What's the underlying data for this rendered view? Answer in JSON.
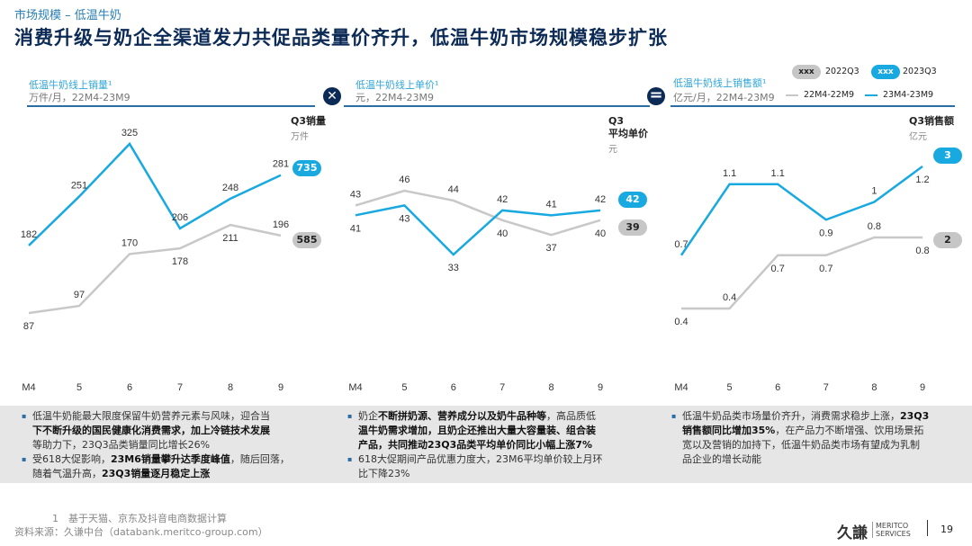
{
  "header": {
    "breadcrumb": "市场规模 – 低温牛奶",
    "title": "消费升级与奶企全渠道发力共促品类量价齐升，低温牛奶市场规模稳步扩张"
  },
  "legend": {
    "badge_text": "xxx",
    "q2022": "2022Q3",
    "q2023": "2023Q3",
    "line2022": "22M4-22M9",
    "line2023": "23M4-23M9"
  },
  "operators": {
    "multiply": "✕",
    "equals": "="
  },
  "colors": {
    "blue": "#18a9e0",
    "grey": "#c8c8c8",
    "navy": "#0b2a55"
  },
  "chart_data": [
    {
      "type": "line",
      "title": "低温牛奶线上销量¹",
      "subtitle": "万件/月，22M4-23M9",
      "q3_label": "Q3销量",
      "q3_unit": "万件",
      "categories": [
        "M4",
        "5",
        "6",
        "7",
        "8",
        "9"
      ],
      "series": [
        {
          "name": "23M4-23M9",
          "values": [
            182,
            251,
            325,
            206,
            248,
            281
          ],
          "q3_total": "735"
        },
        {
          "name": "22M4-22M9",
          "values": [
            87,
            97,
            170,
            178,
            211,
            196
          ],
          "q3_total": "585"
        }
      ]
    },
    {
      "type": "line",
      "title": "低温牛奶线上单价¹",
      "subtitle": "元，22M4-23M9",
      "q3_label": "Q3",
      "q3_label2": "平均单价",
      "q3_unit": "元",
      "categories": [
        "M4",
        "5",
        "6",
        "7",
        "8",
        "9"
      ],
      "series": [
        {
          "name": "23M4-23M9",
          "values": [
            41,
            43,
            33,
            42,
            41,
            42
          ],
          "q3_total": "42"
        },
        {
          "name": "22M4-22M9",
          "values": [
            43,
            46,
            44,
            40,
            37,
            40
          ],
          "q3_total": "39"
        }
      ]
    },
    {
      "type": "line",
      "title": "低温牛奶线上销售额¹",
      "subtitle": "亿元/月，22M4-23M9",
      "q3_label": "Q3销售额",
      "q3_unit": "亿元",
      "categories": [
        "M4",
        "5",
        "6",
        "7",
        "8",
        "9"
      ],
      "series": [
        {
          "name": "23M4-23M9",
          "values": [
            0.7,
            1.1,
            1.1,
            0.9,
            1.0,
            1.2
          ],
          "q3_total": "3"
        },
        {
          "name": "22M4-22M9",
          "values": [
            0.4,
            0.4,
            0.7,
            0.7,
            0.8,
            0.8
          ],
          "q3_total": "2"
        }
      ]
    }
  ],
  "notes": [
    [
      "低温牛奶能最大限度保留牛奶营养元素与风味，迎合当",
      "下不断升级的国民健康化消费需求，加上冷链技术发展",
      "等助力下，23Q3品类销量同比增长26%",
      "受618大促影响，",
      "23M6销量攀升达季度峰值",
      "，随后回落，",
      "随着气温升高，",
      "23Q3销量逐月稳定上涨"
    ],
    [
      "奶企",
      "不断拼奶源、营养成分以及奶牛品种等",
      "，高品质低",
      "温牛奶需求增加，且奶企还推出大量大容量装、组合装",
      "产品，共同推动23Q3品类平均单价同比小幅上涨7%",
      "618大促期间产品优惠力度大，23M6平均单价较上月环",
      "比下降23%"
    ],
    [
      "低温牛奶品类市场量价齐升，消费需求稳步上涨，",
      "23Q3",
      "销售额同比增加35%",
      "，在产品力不断增强、饮用场景拓",
      "宽以及营销的加持下，低温牛奶品类市场有望成为乳制",
      "品企业的增长动能"
    ]
  ],
  "footer": {
    "footnote": "1　基于天猫、京东及抖音电商数据计算",
    "source": "资料来源：久谦中台（databank.meritco-group.com）",
    "logo_cn": "久謙",
    "logo_en1": "MERITCO",
    "logo_en2": "SERVICES",
    "page": "19"
  }
}
